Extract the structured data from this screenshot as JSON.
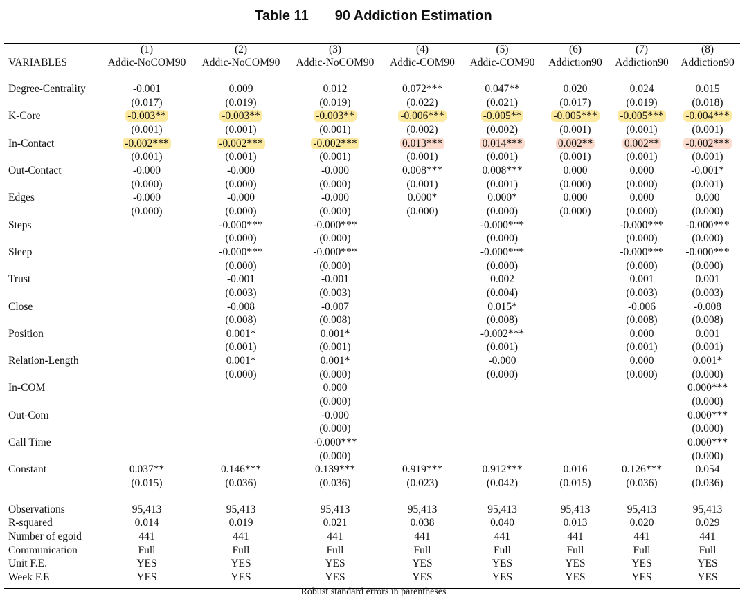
{
  "caption": {
    "label": "Table 11",
    "title": "90 Addiction Estimation"
  },
  "header": {
    "variables_label": "VARIABLES",
    "columns": [
      {
        "num": "(1)",
        "name": "Addic-NoCOM90"
      },
      {
        "num": "(2)",
        "name": "Addic-NoCOM90"
      },
      {
        "num": "(3)",
        "name": "Addic-NoCOM90"
      },
      {
        "num": "(4)",
        "name": "Addic-COM90"
      },
      {
        "num": "(5)",
        "name": "Addic-COM90"
      },
      {
        "num": "(6)",
        "name": "Addiction90"
      },
      {
        "num": "(7)",
        "name": "Addiction90"
      },
      {
        "num": "(8)",
        "name": "Addiction90"
      }
    ]
  },
  "rows": [
    {
      "var": "Degree-Centrality",
      "coef": [
        "-0.001",
        "0.009",
        "0.012",
        "0.072***",
        "0.047**",
        "0.020",
        "0.024",
        "0.015"
      ],
      "se": [
        "(0.017)",
        "(0.019)",
        "(0.019)",
        "(0.022)",
        "(0.021)",
        "(0.017)",
        "(0.019)",
        "(0.018)"
      ]
    },
    {
      "var": "K-Core",
      "coef": [
        "-0.003**",
        "-0.003**",
        "-0.003**",
        "-0.006***",
        "-0.005**",
        "-0.005***",
        "-0.005***",
        "-0.004***"
      ],
      "se": [
        "(0.001)",
        "(0.001)",
        "(0.001)",
        "(0.002)",
        "(0.002)",
        "(0.001)",
        "(0.001)",
        "(0.001)"
      ]
    },
    {
      "var": "In-Contact",
      "coef": [
        "-0.002***",
        "-0.002***",
        "-0.002***",
        "0.013***",
        "0.014***",
        "0.002**",
        "0.002**",
        "-0.002***"
      ],
      "se": [
        "(0.001)",
        "(0.001)",
        "(0.001)",
        "(0.001)",
        "(0.001)",
        "(0.001)",
        "(0.001)",
        "(0.001)"
      ]
    },
    {
      "var": "Out-Contact",
      "coef": [
        "-0.000",
        "-0.000",
        "-0.000",
        "0.008***",
        "0.008***",
        "0.000",
        "0.000",
        "-0.001*"
      ],
      "se": [
        "(0.000)",
        "(0.000)",
        "(0.000)",
        "(0.001)",
        "(0.001)",
        "(0.000)",
        "(0.000)",
        "(0.001)"
      ]
    },
    {
      "var": "Edges",
      "coef": [
        "-0.000",
        "-0.000",
        "-0.000",
        "0.000*",
        "0.000*",
        "0.000",
        "0.000",
        "0.000"
      ],
      "se": [
        "(0.000)",
        "(0.000)",
        "(0.000)",
        "(0.000)",
        "(0.000)",
        "(0.000)",
        "(0.000)",
        "(0.000)"
      ]
    },
    {
      "var": "Steps",
      "coef": [
        "",
        "-0.000***",
        "-0.000***",
        "",
        "-0.000***",
        "",
        "-0.000***",
        "-0.000***"
      ],
      "se": [
        "",
        "(0.000)",
        "(0.000)",
        "",
        "(0.000)",
        "",
        "(0.000)",
        "(0.000)"
      ]
    },
    {
      "var": "Sleep",
      "coef": [
        "",
        "-0.000***",
        "-0.000***",
        "",
        "-0.000***",
        "",
        "-0.000***",
        "-0.000***"
      ],
      "se": [
        "",
        "(0.000)",
        "(0.000)",
        "",
        "(0.000)",
        "",
        "(0.000)",
        "(0.000)"
      ]
    },
    {
      "var": "Trust",
      "coef": [
        "",
        "-0.001",
        "-0.001",
        "",
        "0.002",
        "",
        "0.001",
        "0.001"
      ],
      "se": [
        "",
        "(0.003)",
        "(0.003)",
        "",
        "(0.004)",
        "",
        "(0.003)",
        "(0.003)"
      ]
    },
    {
      "var": "Close",
      "coef": [
        "",
        "-0.008",
        "-0.007",
        "",
        "0.015*",
        "",
        "-0.006",
        "-0.008"
      ],
      "se": [
        "",
        "(0.008)",
        "(0.008)",
        "",
        "(0.008)",
        "",
        "(0.008)",
        "(0.008)"
      ]
    },
    {
      "var": "Position",
      "coef": [
        "",
        "0.001*",
        "0.001*",
        "",
        "-0.002***",
        "",
        "0.000",
        "0.001"
      ],
      "se": [
        "",
        "(0.001)",
        "(0.001)",
        "",
        "(0.001)",
        "",
        "(0.001)",
        "(0.001)"
      ]
    },
    {
      "var": "Relation-Length",
      "coef": [
        "",
        "0.001*",
        "0.001*",
        "",
        "-0.000",
        "",
        "0.000",
        "0.001*"
      ],
      "se": [
        "",
        "(0.000)",
        "(0.000)",
        "",
        "(0.000)",
        "",
        "(0.000)",
        "(0.000)"
      ]
    },
    {
      "var": "In-COM",
      "coef": [
        "",
        "",
        "0.000",
        "",
        "",
        "",
        "",
        "0.000***"
      ],
      "se": [
        "",
        "",
        "(0.000)",
        "",
        "",
        "",
        "",
        "(0.000)"
      ]
    },
    {
      "var": "Out-Com",
      "coef": [
        "",
        "",
        "-0.000",
        "",
        "",
        "",
        "",
        "0.000***"
      ],
      "se": [
        "",
        "",
        "(0.000)",
        "",
        "",
        "",
        "",
        "(0.000)"
      ]
    },
    {
      "var": "Call Time",
      "coef": [
        "",
        "",
        "-0.000***",
        "",
        "",
        "",
        "",
        "0.000***"
      ],
      "se": [
        "",
        "",
        "(0.000)",
        "",
        "",
        "",
        "",
        "(0.000)"
      ]
    },
    {
      "var": "Constant",
      "coef": [
        "0.037**",
        "0.146***",
        "0.139***",
        "0.919***",
        "0.912***",
        "0.016",
        "0.126***",
        "0.054"
      ],
      "se": [
        "(0.015)",
        "(0.036)",
        "(0.036)",
        "(0.023)",
        "(0.042)",
        "(0.015)",
        "(0.036)",
        "(0.036)"
      ]
    }
  ],
  "stats": [
    {
      "label": "Observations",
      "values": [
        "95,413",
        "95,413",
        "95,413",
        "95,413",
        "95,413",
        "95,413",
        "95,413",
        "95,413"
      ]
    },
    {
      "label": "R-squared",
      "values": [
        "0.014",
        "0.019",
        "0.021",
        "0.038",
        "0.040",
        "0.013",
        "0.020",
        "0.029"
      ]
    },
    {
      "label": "Number of egoid",
      "values": [
        "441",
        "441",
        "441",
        "441",
        "441",
        "441",
        "441",
        "441"
      ]
    },
    {
      "label": "Communication",
      "values": [
        "Full",
        "Full",
        "Full",
        "Full",
        "Full",
        "Full",
        "Full",
        "Full"
      ]
    },
    {
      "label": "Unit F.E.",
      "values": [
        "YES",
        "YES",
        "YES",
        "YES",
        "YES",
        "YES",
        "YES",
        "YES"
      ]
    },
    {
      "label": "Week F.E",
      "values": [
        "YES",
        "YES",
        "YES",
        "YES",
        "YES",
        "YES",
        "YES",
        "YES"
      ]
    }
  ],
  "highlights": {
    "yellow_color": "#fbeaa0",
    "orange_color": "#fbdccf",
    "cells": [
      {
        "row": 1,
        "col": 0,
        "tone": "yellow"
      },
      {
        "row": 1,
        "col": 1,
        "tone": "yellow"
      },
      {
        "row": 1,
        "col": 2,
        "tone": "yellow"
      },
      {
        "row": 1,
        "col": 3,
        "tone": "yellow"
      },
      {
        "row": 1,
        "col": 4,
        "tone": "yellow"
      },
      {
        "row": 1,
        "col": 5,
        "tone": "yellow"
      },
      {
        "row": 1,
        "col": 6,
        "tone": "yellow"
      },
      {
        "row": 1,
        "col": 7,
        "tone": "yellow"
      },
      {
        "row": 2,
        "col": 0,
        "tone": "yellow"
      },
      {
        "row": 2,
        "col": 1,
        "tone": "yellow"
      },
      {
        "row": 2,
        "col": 2,
        "tone": "yellow"
      },
      {
        "row": 2,
        "col": 3,
        "tone": "orange"
      },
      {
        "row": 2,
        "col": 4,
        "tone": "orange"
      },
      {
        "row": 2,
        "col": 5,
        "tone": "orange"
      },
      {
        "row": 2,
        "col": 6,
        "tone": "orange"
      },
      {
        "row": 2,
        "col": 7,
        "tone": "orange"
      }
    ]
  },
  "footnote": "Robust standard errors in parentheses"
}
